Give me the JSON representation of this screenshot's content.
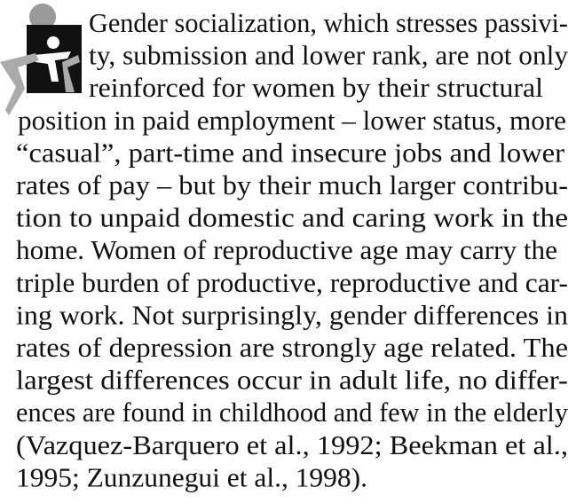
{
  "paragraph": {
    "lines": [
      "Gender socialization, which stresses passivi-",
      "ty, submission and lower rank, are not only",
      "reinforced for women by their structural",
      "position in paid employment – lower status, more",
      "“casual”, part-time and insecure jobs and lower",
      "rates of pay – but by their much larger contribu-",
      "tion to unpaid domestic and caring work in the",
      "home. Women of reproductive age may carry the",
      "triple burden of productive, reproductive and car-",
      "ing work. Not surprisingly, gender differences in",
      "rates of depression are strongly age related. The",
      "largest differences occur in adult life, no differ-",
      "ences are found in childhood and few in the elderly",
      "(Vazquez-Barquero et al., 1992; Beekman et al.,",
      "1995; Zunzunegui et al., 1998)."
    ]
  }
}
